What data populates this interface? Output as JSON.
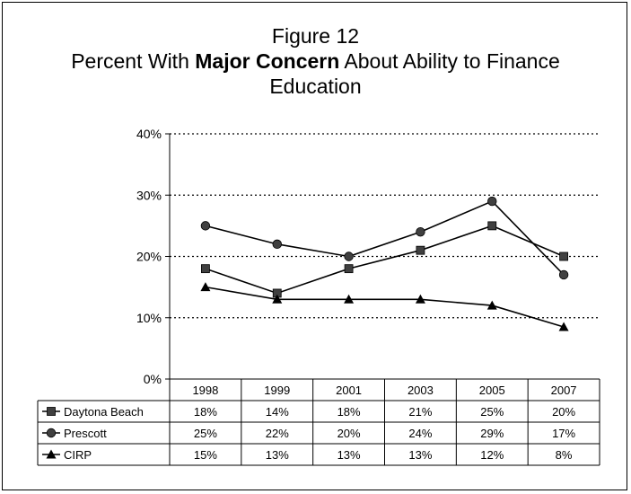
{
  "chart_data": {
    "type": "line",
    "title_line1": "Figure 12",
    "title_line2_prefix": "Percent With ",
    "title_line2_bold": "Major Concern",
    "title_line2_suffix": " About Ability to Finance",
    "title_line3": "Education",
    "categories": [
      "1998",
      "1999",
      "2001",
      "2003",
      "2005",
      "2007"
    ],
    "ylim": [
      0,
      40
    ],
    "yticks": [
      0,
      10,
      20,
      30,
      40
    ],
    "ytick_labels": [
      "0%",
      "10%",
      "20%",
      "30%",
      "40%"
    ],
    "grid": "horizontal dotted",
    "legend": "data table below chart",
    "series": [
      {
        "name": "Daytona Beach",
        "marker": "square",
        "values": [
          18,
          14,
          18,
          21,
          25,
          20
        ],
        "labels": [
          "18%",
          "14%",
          "18%",
          "21%",
          "25%",
          "20%"
        ]
      },
      {
        "name": "Prescott",
        "marker": "circle",
        "values": [
          25,
          22,
          20,
          24,
          29,
          17
        ],
        "labels": [
          "25%",
          "22%",
          "20%",
          "24%",
          "29%",
          "17%"
        ]
      },
      {
        "name": "CIRP",
        "marker": "triangle",
        "values": [
          15,
          13,
          13,
          13,
          12,
          8.5
        ],
        "labels": [
          "15%",
          "13%",
          "13%",
          "13%",
          "12%",
          "8%"
        ]
      }
    ],
    "colors": {
      "line": "#000000",
      "marker": "#404040",
      "plot_bg": "#ffffff"
    }
  }
}
